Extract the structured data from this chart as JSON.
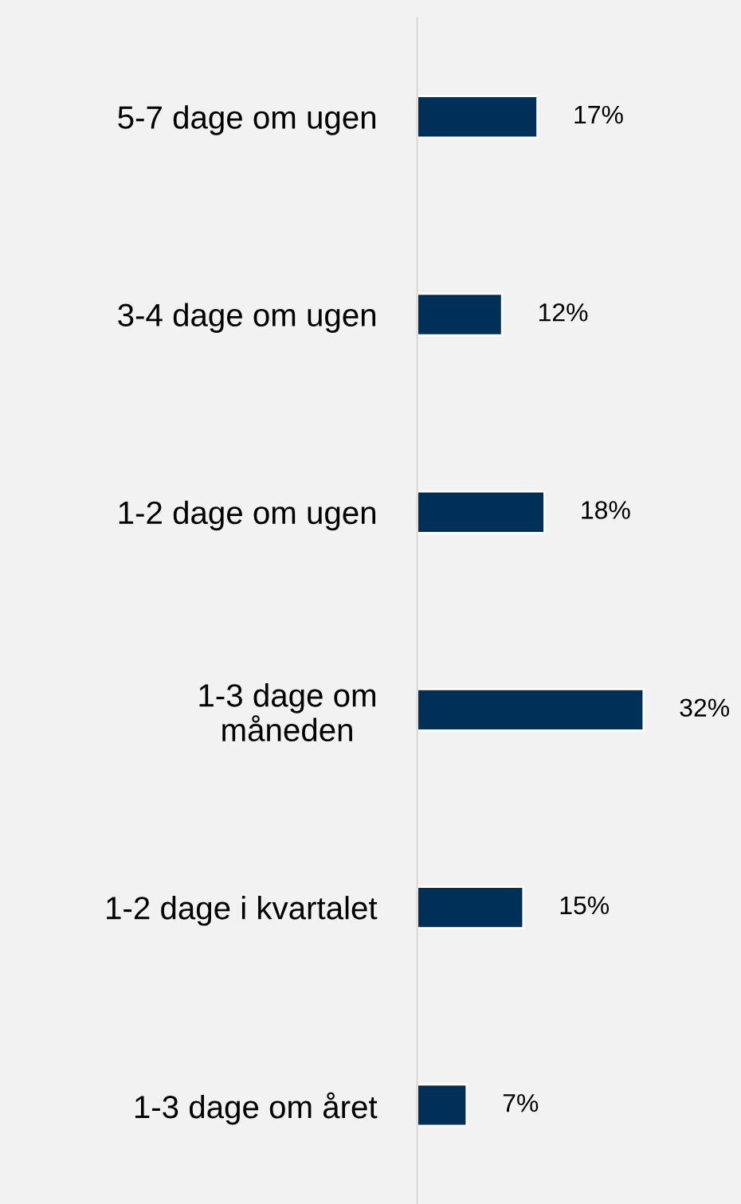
{
  "chart_data": {
    "type": "bar",
    "orientation": "horizontal",
    "categories": [
      "5-7 dage om ugen",
      "3-4 dage om ugen",
      "1-2 dage om ugen",
      "1-3 dage om\nmåneden",
      "1-2 dage i kvartalet",
      "1-3 dage om året"
    ],
    "values": [
      17,
      12,
      18,
      32,
      15,
      7
    ],
    "color": "#003057",
    "data_labels": true,
    "value_labels": [
      "17%",
      "12%",
      "18%",
      "32%",
      "15%",
      "7%"
    ],
    "grid": false,
    "legend": false,
    "tick_labels": "y"
  }
}
